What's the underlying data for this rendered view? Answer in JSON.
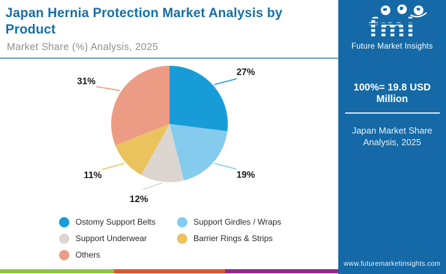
{
  "header": {
    "title": "Japan Hernia Protection Market Analysis by Product",
    "subtitle": "Market Share (%) Analysis, 2025"
  },
  "chart_data": {
    "type": "pie",
    "title": "Market Share (%) Analysis, 2025",
    "direction": "clockwise",
    "start_angle_deg": 0,
    "legend_position": "bottom",
    "segments": [
      {
        "label": "Ostomy Support Belts",
        "value": 27,
        "display": "27%",
        "color": "#189CD8"
      },
      {
        "label": "Support Girdles / Wraps",
        "value": 19,
        "display": "19%",
        "color": "#85CBEE"
      },
      {
        "label": "Support Underwear",
        "value": 12,
        "display": "12%",
        "color": "#DCD5D0"
      },
      {
        "label": "Barrier Rings & Strips",
        "value": 11,
        "display": "11%",
        "color": "#EAC35E"
      },
      {
        "label": "Others",
        "value": 31,
        "display": "31%",
        "color": "#EC9C85"
      }
    ],
    "total_note": "100%= 19.8 USD Million"
  },
  "sidebar": {
    "background": "#1469A6",
    "logo": {
      "text": "fmi",
      "tagline": "Future Market Insights"
    },
    "stat": "100%=  19.8 USD Million",
    "caption": "Japan Market Share Analysis, 2025",
    "url": "www.futuremarketinsights.com"
  },
  "footer_stripe": {
    "colors": [
      "#8DC63F",
      "#E0572B",
      "#92278F"
    ]
  },
  "theme": {
    "title_color": "#146FA8",
    "subtitle_color": "#8E8E8E",
    "divider_color": "#6FA0C8",
    "label_color": "#1A1A1A"
  }
}
